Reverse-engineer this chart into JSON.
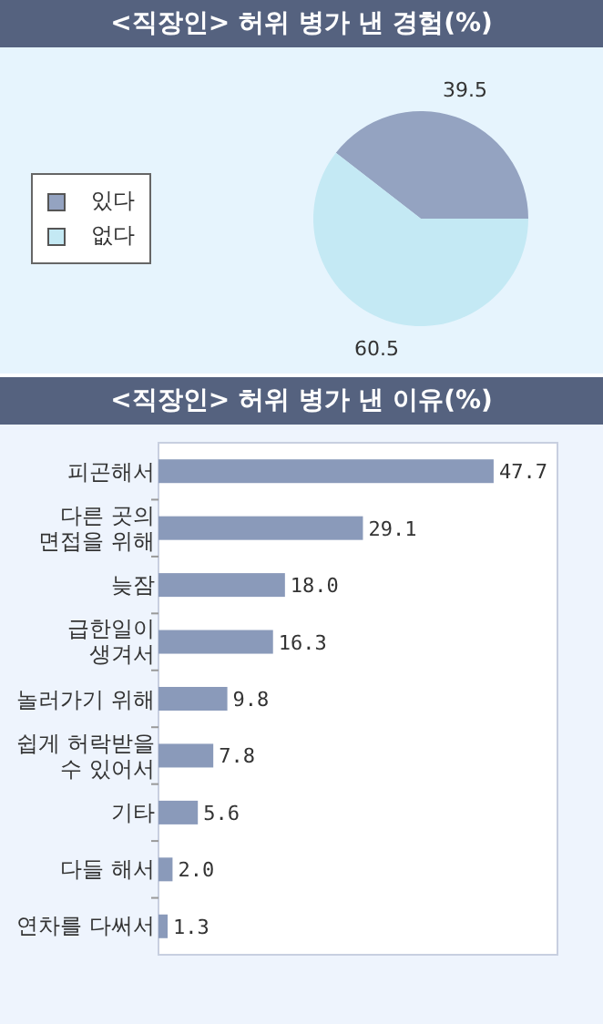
{
  "chart_data": [
    {
      "type": "pie",
      "title": "<직장인> 허위 병가 낸 경험(%)",
      "categories": [
        "있다",
        "없다"
      ],
      "values": [
        39.5,
        60.5
      ],
      "colors": [
        "#94a3c1",
        "#c4e9f4"
      ],
      "legend": "left",
      "data_labels": true
    },
    {
      "type": "bar",
      "orientation": "horizontal",
      "title": "<직장인> 허위 병가 낸 이유(%)",
      "categories": [
        "피곤해서",
        "다른 곳의 면접을 위해",
        "늦잠",
        "급한일이 생겨서",
        "놀러가기 위해",
        "쉽게 허락받을 수 있어서",
        "기타",
        "다들 해서",
        "연차를 다써서"
      ],
      "values": [
        47.7,
        29.1,
        18,
        16.3,
        9.8,
        7.8,
        5.6,
        2,
        1.3
      ],
      "value_labels": [
        "47.7",
        "29.1",
        "18.0",
        "16.3",
        "9.8",
        "7.8",
        "5.6",
        "2.0",
        "1.3"
      ],
      "color": "#8a9aba"
    }
  ]
}
